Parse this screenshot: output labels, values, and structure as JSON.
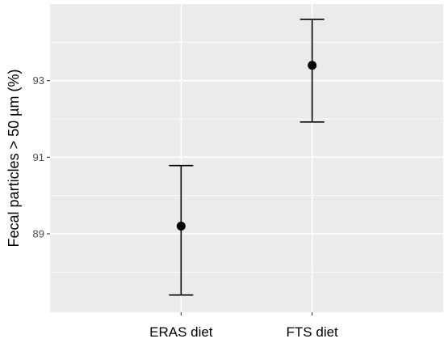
{
  "chart_data": {
    "type": "errorbar",
    "title": "",
    "xlabel": "",
    "ylabel": "Fecal particles > 50 µm (%)",
    "categories": [
      "ERAS diet",
      "FTS diet"
    ],
    "points": [
      {
        "category": "ERAS diet",
        "mean": 89.2,
        "lower": 87.4,
        "upper": 90.78
      },
      {
        "category": "FTS diet",
        "mean": 93.4,
        "lower": 91.92,
        "upper": 94.6
      }
    ],
    "yticks": [
      89,
      91,
      93
    ],
    "ylim": [
      86.95,
      95.0
    ],
    "grid": true,
    "legend": "none",
    "colors": {
      "panel": "#ebebeb",
      "grid_major": "#ffffff",
      "marks": "#000000"
    }
  }
}
